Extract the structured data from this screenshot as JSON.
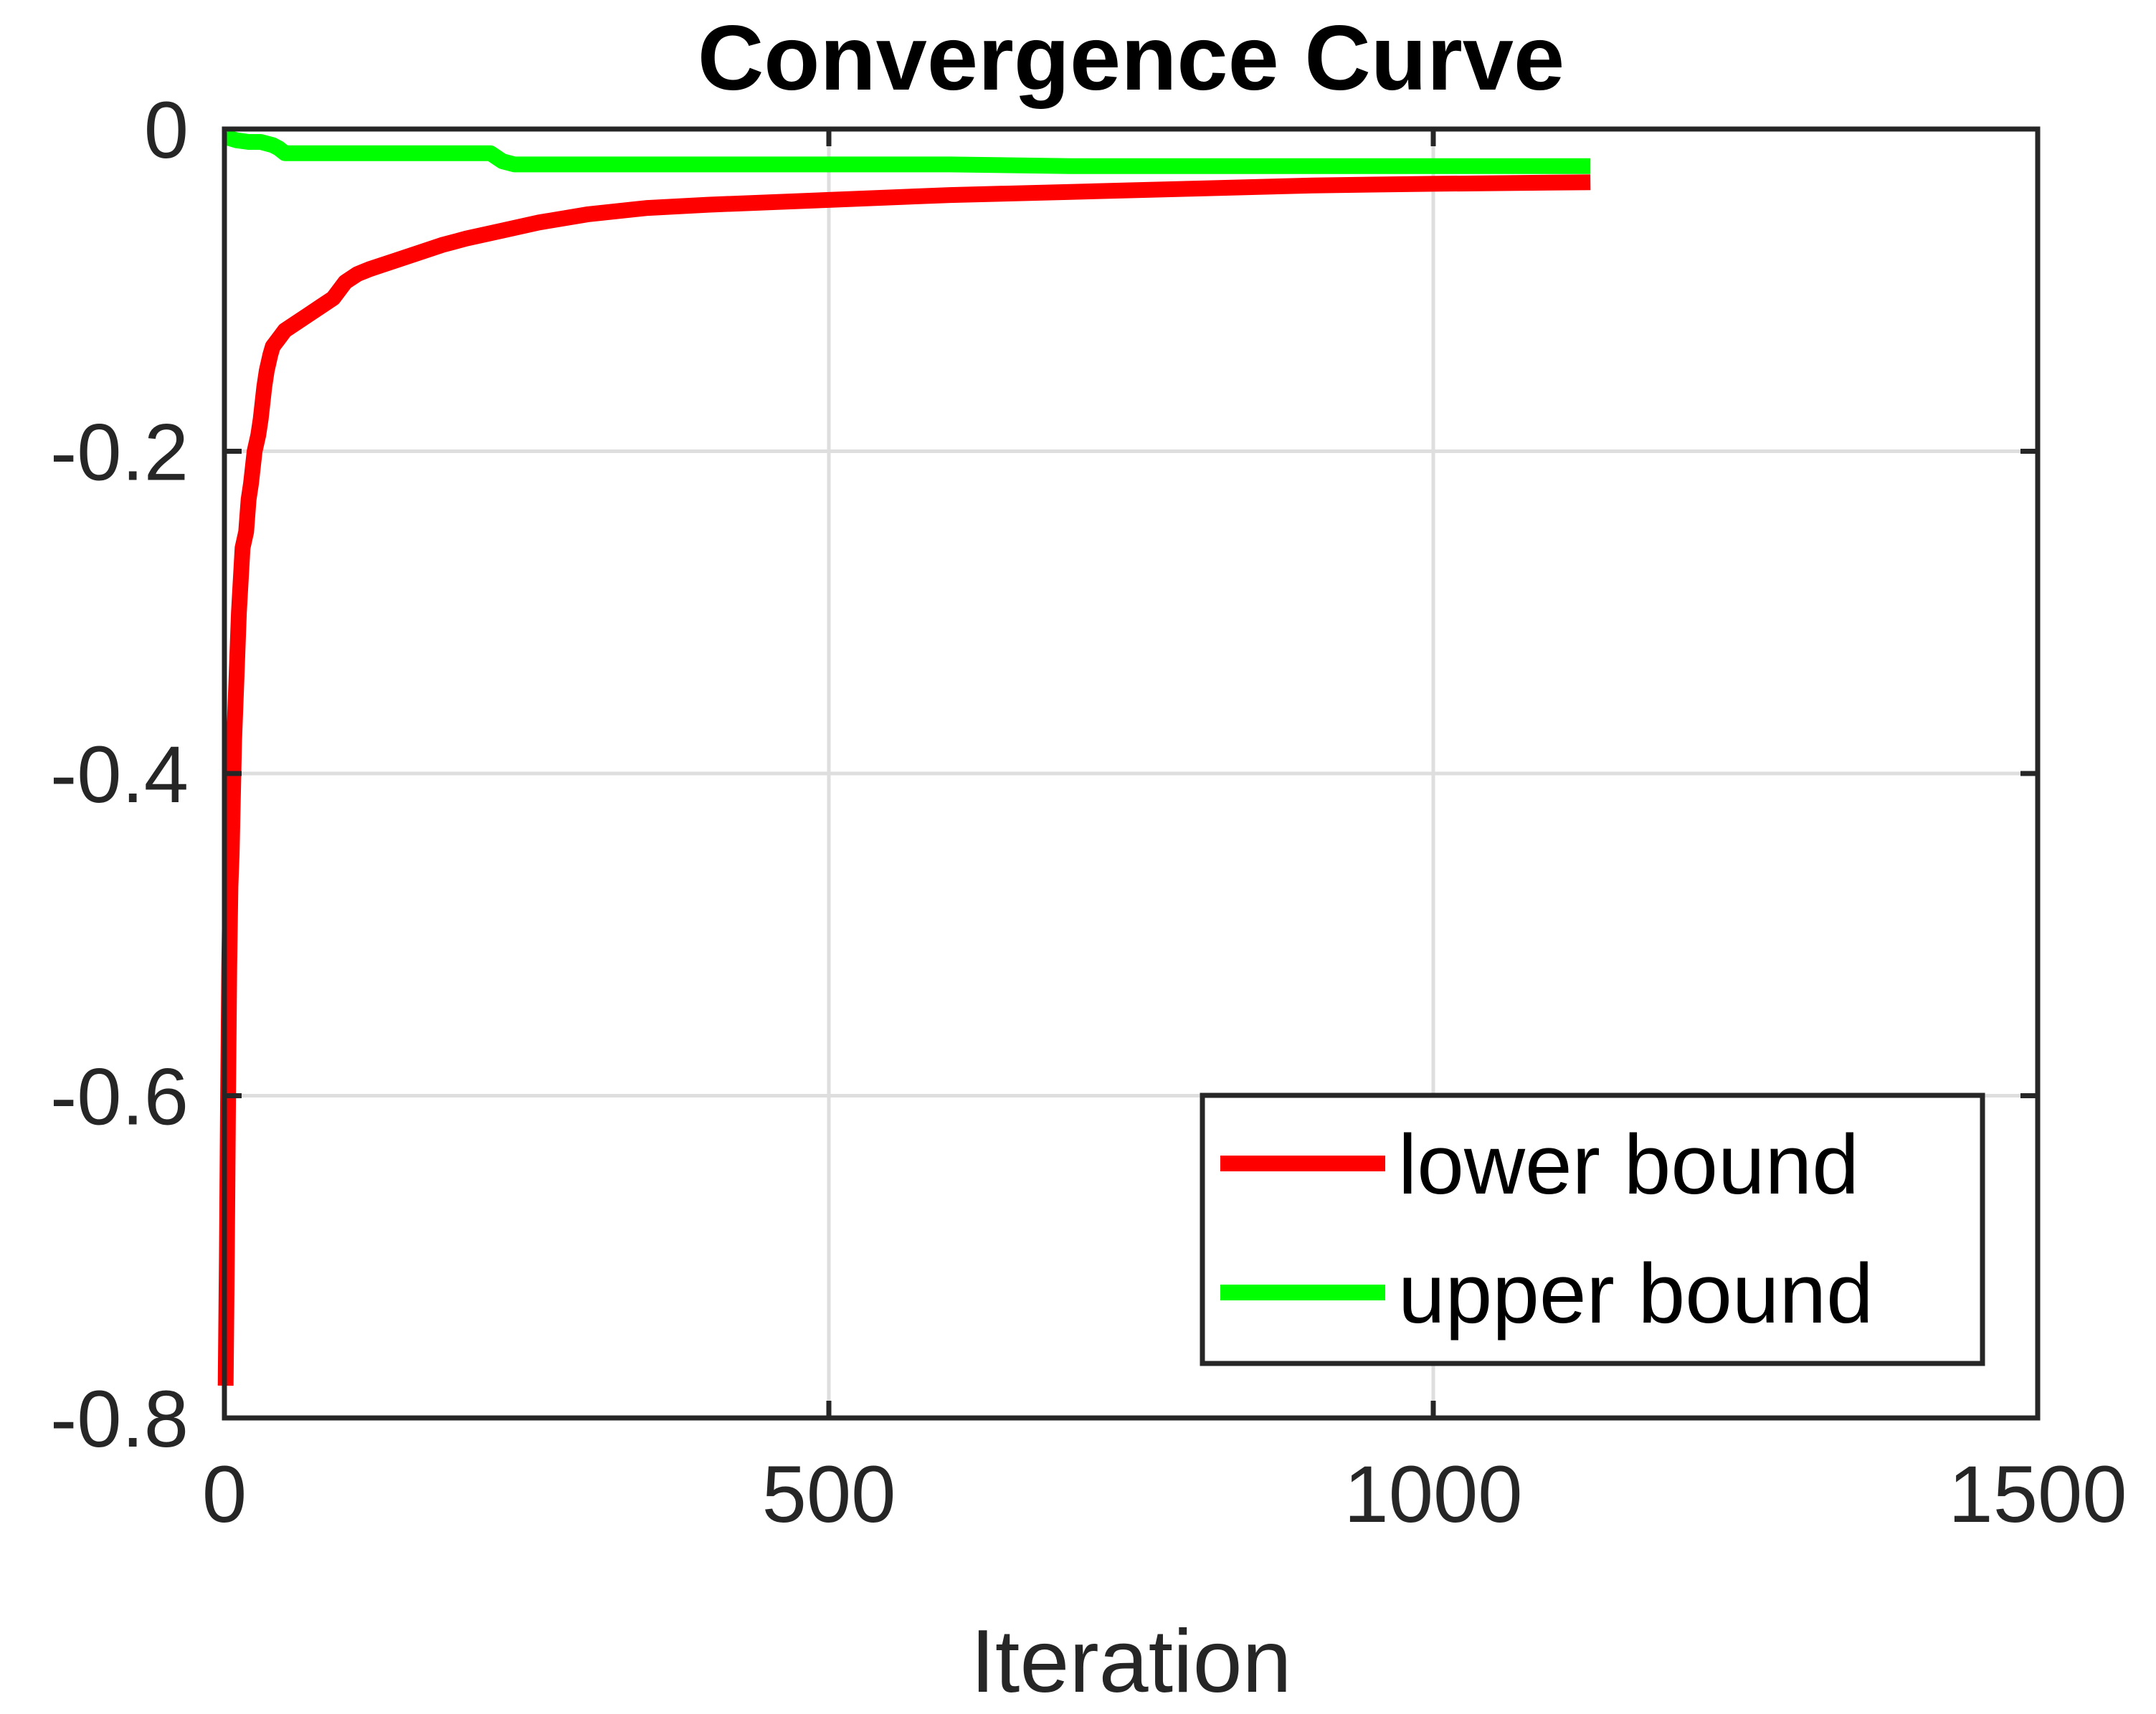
{
  "chart_data": {
    "type": "line",
    "title": "Convergence Curve",
    "xlabel": "Iteration",
    "ylabel": "",
    "xlim": [
      0,
      1500
    ],
    "ylim": [
      -0.8,
      0
    ],
    "xticks": [
      0,
      500,
      1000,
      1500
    ],
    "xtick_labels": [
      "0",
      "500",
      "1000",
      "1500"
    ],
    "yticks": [
      0,
      -0.2,
      -0.4,
      -0.6,
      -0.8
    ],
    "ytick_labels": [
      "0",
      "-0.2",
      "-0.4",
      "-0.6",
      "-0.8"
    ],
    "grid": true,
    "legend_position": "bottom-right",
    "series": [
      {
        "name": "lower bound",
        "color": "#ff0000",
        "x": [
          1,
          2,
          3,
          4,
          5,
          6,
          8,
          10,
          12,
          15,
          18,
          20,
          22,
          25,
          28,
          30,
          33,
          35,
          38,
          40,
          45,
          50,
          60,
          70,
          80,
          90,
          100,
          110,
          120,
          140,
          160,
          180,
          200,
          230,
          260,
          300,
          350,
          400,
          500,
          600,
          700,
          800,
          900,
          1000,
          1130
        ],
        "y": [
          -0.78,
          -0.7,
          -0.6,
          -0.52,
          -0.47,
          -0.45,
          -0.38,
          -0.34,
          -0.3,
          -0.26,
          -0.25,
          -0.23,
          -0.22,
          -0.2,
          -0.19,
          -0.18,
          -0.16,
          -0.15,
          -0.14,
          -0.135,
          -0.13,
          -0.125,
          -0.12,
          -0.115,
          -0.11,
          -0.105,
          -0.095,
          -0.09,
          -0.087,
          -0.082,
          -0.077,
          -0.072,
          -0.068,
          -0.063,
          -0.058,
          -0.053,
          -0.049,
          -0.047,
          -0.044,
          -0.041,
          -0.039,
          -0.037,
          -0.035,
          -0.034,
          -0.033
        ]
      },
      {
        "name": "upper bound",
        "color": "#00ff00",
        "x": [
          1,
          10,
          20,
          30,
          40,
          45,
          50,
          60,
          100,
          150,
          200,
          220,
          230,
          240,
          260,
          300,
          400,
          500,
          600,
          700,
          800,
          900,
          1000,
          1130
        ],
        "y": [
          -0.005,
          -0.007,
          -0.008,
          -0.008,
          -0.01,
          -0.012,
          -0.015,
          -0.015,
          -0.015,
          -0.015,
          -0.015,
          -0.015,
          -0.02,
          -0.022,
          -0.022,
          -0.022,
          -0.022,
          -0.022,
          -0.022,
          -0.023,
          -0.023,
          -0.023,
          -0.023,
          -0.023
        ]
      }
    ]
  }
}
